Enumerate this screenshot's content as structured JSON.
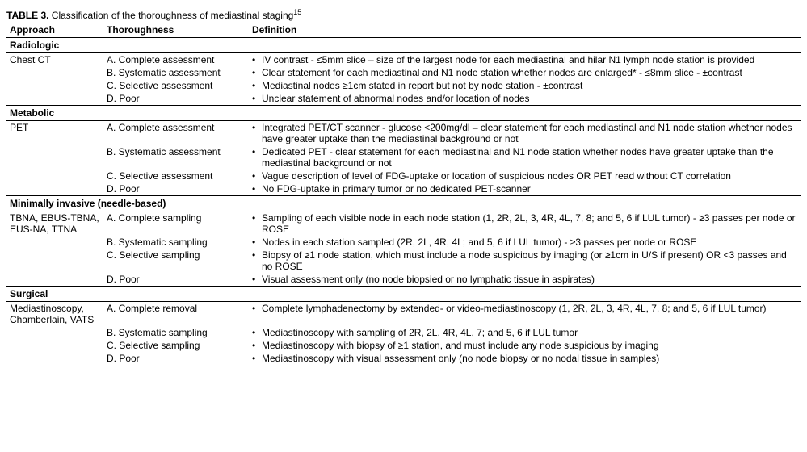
{
  "title_prefix": "TABLE 3.",
  "title_rest": " Classification of the thoroughness of mediastinal staging",
  "title_sup": "15",
  "headers": {
    "approach": "Approach",
    "thoroughness": "Thoroughness",
    "definition": "Definition"
  },
  "sections": [
    {
      "name": "Radiologic",
      "rows": [
        {
          "approach": "Chest CT",
          "th": "A. Complete assessment",
          "def": "IV contrast - ≤5mm slice – size of the largest node for each mediastinal and hilar N1 lymph node station is provided"
        },
        {
          "approach": "",
          "th": "B. Systematic assessment",
          "def": "Clear statement for each mediastinal and N1 node station whether nodes are enlarged* - ≤8mm slice - ±contrast"
        },
        {
          "approach": "",
          "th": "C. Selective assessment",
          "def": "Mediastinal nodes ≥1cm stated in report but not by node station - ±contrast"
        },
        {
          "approach": "",
          "th": "D. Poor",
          "def": "Unclear statement of abnormal nodes and/or location of nodes"
        }
      ]
    },
    {
      "name": "Metabolic",
      "rows": [
        {
          "approach": "PET",
          "th": "A. Complete assessment",
          "def": "Integrated PET/CT scanner - glucose <200mg/dl – clear statement for each mediastinal and N1 node station whether nodes have greater uptake than the mediastinal background or not"
        },
        {
          "approach": "",
          "th": "B. Systematic assessment",
          "def": "Dedicated PET - clear statement for each mediastinal and N1 node station whether nodes have greater uptake than the mediastinal background or not"
        },
        {
          "approach": "",
          "th": "C. Selective assessment",
          "def": "Vague description of level of FDG-uptake or location of suspicious nodes OR PET read without CT correlation"
        },
        {
          "approach": "",
          "th": "D. Poor",
          "def": "No FDG-uptake in primary tumor or no dedicated PET-scanner"
        }
      ]
    },
    {
      "name": "Minimally invasive (needle-based)",
      "rows": [
        {
          "approach": "TBNA, EBUS-TBNA, EUS-NA, TTNA",
          "th": "A. Complete sampling",
          "def": "Sampling of each visible node in each node station (1, 2R, 2L, 3, 4R, 4L, 7, 8; and 5, 6 if LUL tumor) - ≥3 passes per node or ROSE"
        },
        {
          "approach": "",
          "th": "B. Systematic sampling",
          "def": "Nodes in each station sampled (2R, 2L, 4R, 4L; and 5, 6 if LUL tumor) - ≥3 passes per node or ROSE"
        },
        {
          "approach": "",
          "th": "C. Selective sampling",
          "def": "Biopsy of ≥1 node station, which must include a node suspicious by imaging (or ≥1cm in U/S if present) OR <3 passes and no ROSE"
        },
        {
          "approach": "",
          "th": "D. Poor",
          "def": "Visual assessment only (no node biopsied or no lymphatic tissue in aspirates)"
        }
      ]
    },
    {
      "name": "Surgical",
      "rows": [
        {
          "approach": "Mediastinoscopy, Chamberlain, VATS",
          "th": "A. Complete removal",
          "def": "Complete lymphadenectomy by extended- or video-mediastinoscopy (1, 2R, 2L, 3, 4R, 4L, 7, 8; and 5, 6 if LUL tumor)"
        },
        {
          "approach": "",
          "th": "B. Systematic sampling",
          "def": "Mediastinoscopy with sampling of 2R, 2L, 4R, 4L, 7; and 5, 6 if LUL tumor"
        },
        {
          "approach": "",
          "th": "C. Selective sampling",
          "def": "Mediastinoscopy with biopsy of ≥1 station, and must include any node suspicious by imaging"
        },
        {
          "approach": "",
          "th": "D. Poor",
          "def": "Mediastinoscopy with visual assessment only (no node biopsy or no nodal tissue in samples)"
        }
      ]
    }
  ],
  "bullet_char": "•",
  "colors": {
    "text": "#000000",
    "background": "#ffffff",
    "border": "#000000"
  }
}
